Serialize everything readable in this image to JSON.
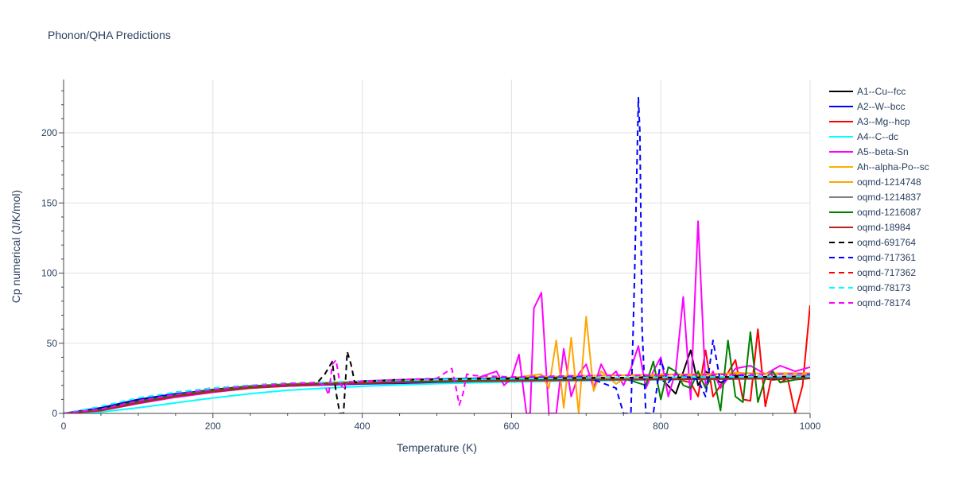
{
  "title": "Phonon/QHA Predictions",
  "chart_data": {
    "type": "line",
    "title": "Phonon/QHA Predictions",
    "xlabel": "Temperature (K)",
    "ylabel": "Cp numerical (J/K/mol)",
    "xlim": [
      0,
      1000
    ],
    "ylim": [
      0,
      238
    ],
    "xticks": [
      0,
      200,
      400,
      600,
      800,
      1000
    ],
    "yticks": [
      0,
      50,
      100,
      150,
      200
    ],
    "grid": true,
    "legend_position": "right",
    "series": [
      {
        "name": "A1--Cu--fcc",
        "color": "#000000",
        "dash": "solid",
        "x": [
          0,
          50,
          100,
          150,
          200,
          250,
          300,
          350,
          400,
          450,
          500,
          550,
          600,
          650,
          700,
          750,
          800,
          820,
          840,
          850,
          860,
          880,
          900,
          950,
          1000
        ],
        "y": [
          0,
          3,
          9,
          13.5,
          17,
          19.5,
          20.8,
          21.8,
          22.5,
          23.2,
          23.7,
          24.1,
          24.4,
          24.6,
          24.8,
          25,
          25.2,
          14,
          45,
          20,
          30,
          22,
          27,
          24,
          26
        ]
      },
      {
        "name": "A2--W--bcc",
        "color": "#0000ff",
        "dash": "solid",
        "x": [
          0,
          50,
          100,
          150,
          200,
          250,
          300,
          350,
          400,
          450,
          500,
          550,
          600,
          650,
          700,
          750,
          800,
          850,
          900,
          950,
          1000
        ],
        "y": [
          0,
          4,
          10,
          14,
          16.5,
          18.5,
          19.5,
          20.3,
          21,
          21.5,
          22,
          22.6,
          23.2,
          23.6,
          24,
          24.4,
          24.8,
          25.2,
          25.6,
          26,
          26.4
        ]
      },
      {
        "name": "A3--Mg--hcp",
        "color": "#ff0000",
        "dash": "solid",
        "x": [
          0,
          50,
          100,
          150,
          200,
          250,
          300,
          350,
          400,
          450,
          500,
          550,
          600,
          650,
          700,
          750,
          800,
          840,
          850,
          860,
          870,
          880,
          900,
          910,
          920,
          930,
          940,
          950,
          960,
          970,
          980,
          990,
          1000
        ],
        "y": [
          0,
          2.5,
          8,
          13,
          16.5,
          19,
          20.5,
          21.5,
          22.2,
          22.8,
          23.3,
          23.7,
          24,
          24.4,
          24.8,
          25.2,
          27,
          22,
          12,
          45,
          12,
          20,
          38,
          10,
          9,
          60,
          5,
          30,
          22,
          25,
          0,
          20,
          77
        ]
      },
      {
        "name": "A4--C--dc",
        "color": "#00ffff",
        "dash": "solid",
        "x": [
          0,
          50,
          100,
          150,
          200,
          250,
          300,
          350,
          400,
          450,
          500,
          550,
          600,
          650,
          700,
          750,
          800,
          850,
          900,
          950,
          1000
        ],
        "y": [
          0,
          1,
          4,
          7.5,
          11,
          14,
          16.5,
          18,
          19.3,
          20.3,
          21.2,
          21.8,
          22.3,
          22.8,
          23.2,
          23.6,
          23.9,
          24.2,
          24.5,
          24.8,
          25
        ]
      },
      {
        "name": "A5--beta-Sn",
        "color": "#ff00ff",
        "dash": "solid",
        "x": [
          0,
          50,
          100,
          150,
          200,
          250,
          300,
          350,
          400,
          450,
          500,
          550,
          580,
          590,
          600,
          610,
          620,
          625,
          630,
          640,
          650,
          660,
          670,
          680,
          690,
          700,
          710,
          720,
          730,
          740,
          750,
          760,
          770,
          780,
          790,
          800,
          810,
          820,
          830,
          840,
          850,
          860,
          870,
          880,
          900,
          920,
          940,
          960,
          980,
          1000
        ],
        "y": [
          0,
          2,
          7,
          11.5,
          15,
          18,
          19.5,
          20.5,
          21.5,
          22.5,
          23.5,
          24.5,
          30,
          20,
          25,
          42,
          0,
          0,
          75,
          86,
          0,
          0,
          46,
          12,
          28,
          35,
          18,
          35,
          25,
          30,
          20,
          32,
          48,
          18,
          30,
          40,
          12,
          30,
          83,
          10,
          137,
          20,
          30,
          18,
          32,
          34,
          28,
          34,
          30,
          33
        ]
      },
      {
        "name": "Ah--alpha-Po--sc",
        "color": "#ffb000",
        "dash": "solid",
        "x": [
          0,
          50,
          100,
          150,
          200,
          250,
          300,
          350,
          400,
          450,
          500,
          550,
          600,
          650,
          700,
          750,
          800,
          850,
          900,
          950,
          1000
        ],
        "y": [
          0,
          2,
          8,
          12.5,
          16,
          18.8,
          20.5,
          21.5,
          22.5,
          23.5,
          24.3,
          25,
          25.6,
          26.2,
          26.8,
          27.2,
          27.6,
          28,
          28.3,
          28.6,
          28.8
        ]
      },
      {
        "name": "oqmd-1214748",
        "color": "#ffa500",
        "dash": "solid",
        "x": [
          0,
          50,
          100,
          150,
          200,
          250,
          300,
          350,
          400,
          450,
          500,
          550,
          600,
          640,
          650,
          660,
          670,
          680,
          690,
          700,
          710,
          720,
          740,
          760,
          780,
          800,
          850,
          900,
          950,
          1000
        ],
        "y": [
          0,
          2.5,
          8.5,
          13,
          16.5,
          19.2,
          20.7,
          21.8,
          22.8,
          23.6,
          24.2,
          24.8,
          25.3,
          28,
          18,
          52,
          4,
          54,
          0,
          69,
          16,
          30,
          21,
          28,
          25,
          28,
          27,
          29,
          28,
          28
        ]
      },
      {
        "name": "oqmd-1214837",
        "color": "#808080",
        "dash": "solid",
        "x": [
          0,
          50,
          100,
          150,
          200,
          250,
          300,
          350,
          400,
          450,
          500,
          550,
          600,
          650,
          700,
          750,
          800,
          850,
          900,
          950,
          1000
        ],
        "y": [
          0,
          2.5,
          8,
          12.5,
          16,
          18.5,
          20,
          21,
          21.8,
          22.5,
          23,
          23.4,
          23.8,
          24.1,
          24.4,
          24.7,
          25,
          25.2,
          25.4,
          25.6,
          25.8
        ]
      },
      {
        "name": "oqmd-1216087",
        "color": "#008000",
        "dash": "solid",
        "x": [
          0,
          50,
          100,
          150,
          200,
          250,
          300,
          350,
          400,
          450,
          500,
          550,
          600,
          650,
          700,
          750,
          780,
          790,
          800,
          810,
          820,
          830,
          840,
          850,
          860,
          870,
          880,
          890,
          900,
          910,
          920,
          930,
          940,
          950,
          960,
          980,
          1000
        ],
        "y": [
          0,
          2.5,
          8.5,
          13,
          16.5,
          19,
          20.5,
          21.5,
          22.2,
          22.8,
          23.3,
          23.7,
          24,
          24.4,
          24.8,
          25,
          20,
          37,
          10,
          33,
          30,
          20,
          18,
          30,
          18,
          28,
          2,
          52,
          12,
          8,
          58,
          8,
          25,
          30,
          22,
          24,
          25
        ]
      },
      {
        "name": "oqmd-18984",
        "color": "#b22222",
        "dash": "solid",
        "x": [
          0,
          50,
          100,
          150,
          200,
          250,
          300,
          350,
          400,
          450,
          500,
          550,
          600,
          650,
          700,
          750,
          800,
          850,
          900,
          950,
          1000
        ],
        "y": [
          0,
          2,
          7.5,
          12,
          15.5,
          18,
          19.8,
          20.8,
          21.5,
          22,
          22.5,
          22.9,
          23.2,
          23.5,
          23.8,
          24,
          24.2,
          24.4,
          24.6,
          24.8,
          25
        ]
      },
      {
        "name": "oqmd-691764",
        "color": "#000000",
        "dash": "dash",
        "x": [
          0,
          50,
          100,
          150,
          200,
          250,
          300,
          340,
          350,
          360,
          365,
          370,
          375,
          380,
          385,
          390,
          400,
          450,
          500,
          550,
          600,
          650,
          700,
          750,
          800,
          850,
          900,
          950,
          1000
        ],
        "y": [
          0,
          4,
          10,
          15,
          18,
          20,
          21.5,
          22,
          28,
          37,
          15,
          0,
          0,
          44,
          35,
          22,
          23,
          24,
          24.5,
          24.8,
          25,
          25.2,
          25.4,
          25.5,
          25.6,
          25.8,
          26,
          26.2,
          26.4
        ]
      },
      {
        "name": "oqmd-717361",
        "color": "#0000ff",
        "dash": "dash",
        "x": [
          0,
          50,
          100,
          150,
          200,
          250,
          300,
          350,
          400,
          450,
          500,
          550,
          600,
          650,
          700,
          740,
          750,
          760,
          765,
          770,
          772,
          775,
          780,
          790,
          800,
          810,
          820,
          850,
          860,
          870,
          880,
          900,
          950,
          1000
        ],
        "y": [
          0,
          3.5,
          9.5,
          14,
          17,
          19.5,
          21,
          22,
          23,
          23.8,
          24.4,
          24.9,
          25.3,
          25.7,
          26,
          18,
          0,
          0,
          100,
          225,
          200,
          60,
          0,
          0,
          38,
          22,
          28,
          24,
          12,
          52,
          22,
          27,
          26,
          27
        ]
      },
      {
        "name": "oqmd-717362",
        "color": "#ff0000",
        "dash": "dash",
        "x": [
          0,
          50,
          100,
          150,
          200,
          250,
          300,
          350,
          400,
          450,
          500,
          550,
          600,
          650,
          700,
          750,
          800,
          850,
          900,
          950,
          1000
        ],
        "y": [
          0,
          3,
          9,
          13.5,
          17,
          19.5,
          21,
          22,
          22.8,
          23.4,
          23.9,
          24.3,
          24.6,
          24.9,
          25.2,
          25.4,
          25.6,
          25.8,
          26,
          26.2,
          26.4
        ]
      },
      {
        "name": "oqmd-78173",
        "color": "#00ffff",
        "dash": "dash",
        "x": [
          0,
          50,
          100,
          150,
          200,
          250,
          300,
          350,
          400,
          450,
          500,
          550,
          600,
          650,
          700,
          750,
          800,
          850,
          900,
          950,
          1000
        ],
        "y": [
          0,
          5,
          11,
          15,
          18,
          20,
          21.3,
          22.2,
          22.9,
          23.5,
          24,
          24.4,
          24.7,
          25,
          25.3,
          25.5,
          25.7,
          25.9,
          26.1,
          26.3,
          26.5
        ]
      },
      {
        "name": "oqmd-78174",
        "color": "#ff00ff",
        "dash": "dash",
        "x": [
          0,
          50,
          100,
          150,
          200,
          250,
          300,
          340,
          350,
          355,
          360,
          365,
          370,
          375,
          380,
          390,
          400,
          450,
          500,
          520,
          525,
          530,
          535,
          540,
          550,
          600,
          650,
          700,
          750,
          800,
          850,
          900,
          950,
          1000
        ],
        "y": [
          0,
          3,
          9,
          13.5,
          17,
          19.5,
          21,
          22,
          20,
          13,
          35,
          38,
          22,
          17,
          23,
          22,
          23,
          24,
          25,
          32,
          20,
          6,
          14,
          28,
          27,
          26,
          26.5,
          27,
          27.2,
          27.4,
          27.6,
          27.8,
          28,
          28.2
        ]
      }
    ]
  }
}
